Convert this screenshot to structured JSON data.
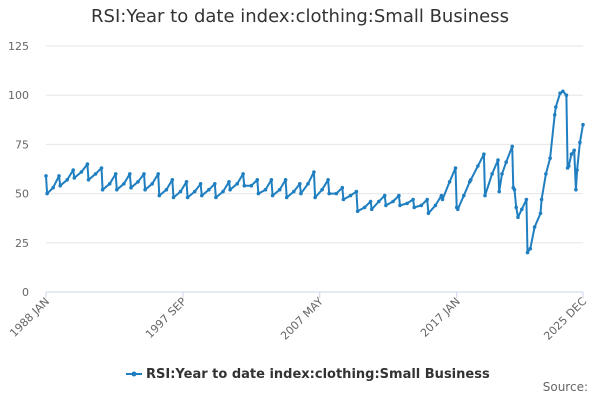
{
  "chart_data": {
    "type": "line",
    "title": "RSI:Year to date index:clothing:Small Business",
    "xlabel": "",
    "ylabel": "",
    "ylim": [
      0,
      125
    ],
    "yticks": [
      0,
      25,
      50,
      75,
      100,
      125
    ],
    "x_tick_labels": [
      "1988 JAN",
      "1997 SEP",
      "2007 MAY",
      "2017 JAN",
      "2025 DEC"
    ],
    "x_tick_years": [
      1988.0,
      1997.67,
      2007.33,
      2017.0,
      2025.92
    ],
    "x_range": [
      1988.0,
      2025.92
    ],
    "grid": true,
    "legend_position": "bottom",
    "series": [
      {
        "name": "RSI:Year to date index:clothing:Small Business",
        "color": "#1f7fc0",
        "points": [
          [
            1988.0,
            59
          ],
          [
            1988.08,
            50
          ],
          [
            1988.5,
            53
          ],
          [
            1988.92,
            59
          ],
          [
            1989.0,
            54
          ],
          [
            1989.5,
            57
          ],
          [
            1989.92,
            62
          ],
          [
            1990.0,
            58
          ],
          [
            1990.5,
            61
          ],
          [
            1990.92,
            65
          ],
          [
            1991.0,
            57
          ],
          [
            1991.5,
            60
          ],
          [
            1991.92,
            63
          ],
          [
            1992.0,
            52
          ],
          [
            1992.5,
            55
          ],
          [
            1992.92,
            60
          ],
          [
            1993.0,
            52
          ],
          [
            1993.5,
            55
          ],
          [
            1993.92,
            60
          ],
          [
            1994.0,
            53
          ],
          [
            1994.5,
            56
          ],
          [
            1994.92,
            60
          ],
          [
            1995.0,
            52
          ],
          [
            1995.5,
            55
          ],
          [
            1995.92,
            60
          ],
          [
            1996.0,
            49
          ],
          [
            1996.5,
            52
          ],
          [
            1996.92,
            57
          ],
          [
            1997.0,
            48
          ],
          [
            1997.5,
            51
          ],
          [
            1997.92,
            56
          ],
          [
            1998.0,
            48
          ],
          [
            1998.5,
            51
          ],
          [
            1998.92,
            55
          ],
          [
            1999.0,
            49
          ],
          [
            1999.5,
            52
          ],
          [
            1999.92,
            55
          ],
          [
            2000.0,
            48
          ],
          [
            2000.5,
            51
          ],
          [
            2000.92,
            56
          ],
          [
            2001.0,
            52
          ],
          [
            2001.5,
            55
          ],
          [
            2001.92,
            60
          ],
          [
            2002.0,
            54
          ],
          [
            2002.5,
            54
          ],
          [
            2002.92,
            57
          ],
          [
            2003.0,
            50
          ],
          [
            2003.5,
            52
          ],
          [
            2003.92,
            57
          ],
          [
            2004.0,
            49
          ],
          [
            2004.5,
            52
          ],
          [
            2004.92,
            57
          ],
          [
            2005.0,
            48
          ],
          [
            2005.5,
            51
          ],
          [
            2005.92,
            55
          ],
          [
            2006.0,
            50
          ],
          [
            2006.5,
            55
          ],
          [
            2006.92,
            61
          ],
          [
            2007.0,
            48
          ],
          [
            2007.5,
            52
          ],
          [
            2007.92,
            57
          ],
          [
            2008.0,
            50
          ],
          [
            2008.5,
            50
          ],
          [
            2008.92,
            53
          ],
          [
            2009.0,
            47
          ],
          [
            2009.5,
            49
          ],
          [
            2009.92,
            51
          ],
          [
            2010.0,
            41
          ],
          [
            2010.5,
            43
          ],
          [
            2010.92,
            46
          ],
          [
            2011.0,
            42
          ],
          [
            2011.5,
            46
          ],
          [
            2011.92,
            49
          ],
          [
            2012.0,
            44
          ],
          [
            2012.5,
            46
          ],
          [
            2012.92,
            49
          ],
          [
            2013.0,
            44
          ],
          [
            2013.5,
            45
          ],
          [
            2013.92,
            47
          ],
          [
            2014.0,
            43
          ],
          [
            2014.5,
            44
          ],
          [
            2014.92,
            47
          ],
          [
            2015.0,
            40
          ],
          [
            2015.5,
            44
          ],
          [
            2015.92,
            49
          ],
          [
            2016.0,
            47
          ],
          [
            2016.5,
            56
          ],
          [
            2016.92,
            63
          ],
          [
            2017.0,
            43
          ],
          [
            2017.08,
            42
          ],
          [
            2017.5,
            49
          ],
          [
            2017.92,
            56
          ],
          [
            2018.0,
            57
          ],
          [
            2018.5,
            64
          ],
          [
            2018.92,
            70
          ],
          [
            2019.0,
            49
          ],
          [
            2019.5,
            60
          ],
          [
            2019.92,
            67
          ],
          [
            2020.0,
            51
          ],
          [
            2020.2,
            60
          ],
          [
            2020.5,
            66
          ],
          [
            2020.92,
            74
          ],
          [
            2021.0,
            53
          ],
          [
            2021.08,
            52
          ],
          [
            2021.2,
            43
          ],
          [
            2021.33,
            38
          ],
          [
            2021.6,
            42
          ],
          [
            2021.92,
            47
          ],
          [
            2022.0,
            20
          ],
          [
            2022.2,
            22
          ],
          [
            2022.5,
            33
          ],
          [
            2022.92,
            40
          ],
          [
            2023.0,
            47
          ],
          [
            2023.3,
            60
          ],
          [
            2023.6,
            68
          ],
          [
            2023.92,
            90
          ],
          [
            2024.0,
            94
          ],
          [
            2024.3,
            101
          ],
          [
            2024.5,
            102
          ],
          [
            2024.75,
            100
          ],
          [
            2024.83,
            63
          ],
          [
            2024.92,
            64
          ],
          [
            2025.1,
            70
          ],
          [
            2025.3,
            72
          ],
          [
            2025.42,
            52
          ],
          [
            2025.5,
            62
          ],
          [
            2025.7,
            76
          ],
          [
            2025.92,
            85
          ]
        ]
      }
    ]
  },
  "source_label": "Source:"
}
